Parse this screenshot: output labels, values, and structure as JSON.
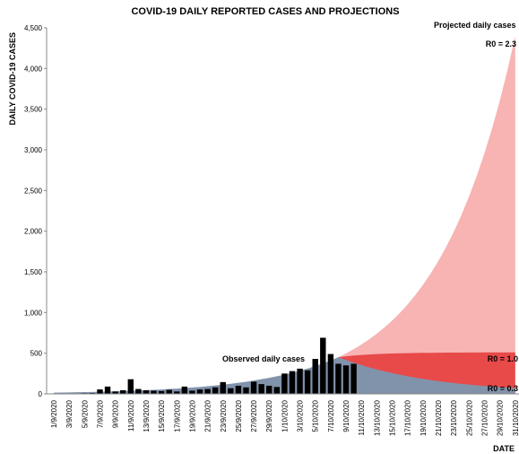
{
  "chart_data": {
    "type": "bar",
    "title": "COVID-19 DAILY REPORTED CASES AND PROJECTIONS",
    "y_label": "DAILY COVID-19 CASES",
    "x_label": "DATE",
    "annotations": [
      "Projected daily cases",
      "Observed daily cases"
    ],
    "categories": [
      "1/9/2020",
      null,
      "3/9/2020",
      null,
      "5/9/2020",
      null,
      "7/9/2020",
      null,
      "9/9/2020",
      null,
      "11/9/2020",
      null,
      "13/9/2020",
      null,
      "15/9/2020",
      null,
      "17/9/2020",
      null,
      "19/9/2020",
      null,
      "21/9/2020",
      null,
      "23/9/2020",
      null,
      "25/9/2020",
      null,
      "27/9/2020",
      null,
      "29/9/2020",
      null,
      "1/10/2020",
      null,
      "3/10/2020",
      null,
      "5/10/2020",
      null,
      "7/10/2020",
      null,
      "9/10/2020",
      null,
      "11/10/2020",
      null,
      "13/10/2020",
      null,
      "15/10/2020",
      null,
      "17/10/2020",
      null,
      "19/10/2020",
      null,
      "21/10/2020",
      null,
      "23/10/2020",
      null,
      "25/10/2020",
      null,
      "27/10/2020",
      null,
      "29/10/2020",
      null,
      "31/10/2020"
    ],
    "series": [
      {
        "name": "R0 = 2.3",
        "type": "area",
        "color": "#f8b3b3",
        "values": [
          null,
          null,
          null,
          null,
          null,
          null,
          null,
          null,
          null,
          null,
          null,
          null,
          null,
          null,
          null,
          null,
          null,
          null,
          null,
          null,
          null,
          null,
          null,
          null,
          null,
          null,
          null,
          null,
          null,
          null,
          null,
          null,
          null,
          null,
          null,
          null,
          null,
          451,
          498,
          550,
          607,
          670,
          740,
          817,
          902,
          996,
          1099,
          1214,
          1340,
          1480,
          1634,
          1804,
          1991,
          2199,
          2428,
          2680,
          2959,
          3267,
          3608,
          3983,
          4398
        ]
      },
      {
        "name": "R0 = 1.0",
        "type": "area",
        "color": "#e84a4a",
        "values": [
          null,
          null,
          null,
          null,
          null,
          null,
          null,
          null,
          null,
          null,
          null,
          null,
          null,
          null,
          null,
          null,
          null,
          null,
          null,
          null,
          null,
          null,
          null,
          null,
          null,
          null,
          null,
          null,
          null,
          null,
          null,
          null,
          null,
          null,
          null,
          null,
          null,
          451,
          462,
          471,
          478,
          484,
          489,
          493,
          496,
          499,
          501,
          503,
          504,
          505,
          506,
          507,
          508,
          508,
          509,
          509,
          510,
          510,
          510,
          510,
          510
        ]
      },
      {
        "name": "R0 = 0.3",
        "type": "area",
        "color": "#8193ab",
        "values": [
          15,
          16,
          18,
          20,
          22,
          24,
          26,
          29,
          31,
          34,
          38,
          41,
          45,
          50,
          54,
          60,
          65,
          72,
          79,
          86,
          94,
          103,
          113,
          124,
          136,
          149,
          164,
          180,
          197,
          216,
          237,
          260,
          285,
          312,
          342,
          375,
          411,
          451,
          416,
          384,
          354,
          326,
          301,
          277,
          256,
          236,
          217,
          200,
          185,
          170,
          157,
          145,
          134,
          123,
          114,
          105,
          97,
          89,
          82,
          76,
          70
        ]
      },
      {
        "type": "bar",
        "color": "#000000",
        "values": [
          5,
          5,
          5,
          5,
          8,
          10,
          55,
          90,
          30,
          45,
          180,
          60,
          45,
          40,
          35,
          50,
          30,
          90,
          40,
          55,
          60,
          80,
          145,
          70,
          100,
          80,
          150,
          120,
          100,
          85,
          250,
          280,
          310,
          290,
          430,
          690,
          490,
          370,
          350,
          370,
          null,
          null,
          null,
          null,
          null,
          null,
          null,
          null,
          null,
          null,
          null,
          null,
          null,
          null,
          null,
          null,
          null,
          null,
          null,
          null,
          null
        ]
      }
    ],
    "ylim": [
      0,
      4500
    ],
    "yticks": [
      0,
      500,
      {
        "value": 1000,
        "label": "1,000"
      },
      {
        "value": 1500,
        "label": "1,500"
      },
      {
        "value": 2000,
        "label": "2,000"
      },
      {
        "value": 2500,
        "label": "2,500"
      },
      {
        "value": 3000,
        "label": "3,000"
      },
      {
        "value": 3500,
        "label": "3,500"
      },
      {
        "value": 4000,
        "label": "4,000"
      },
      {
        "value": 4500,
        "label": "4,500"
      }
    ],
    "grid": false
  }
}
